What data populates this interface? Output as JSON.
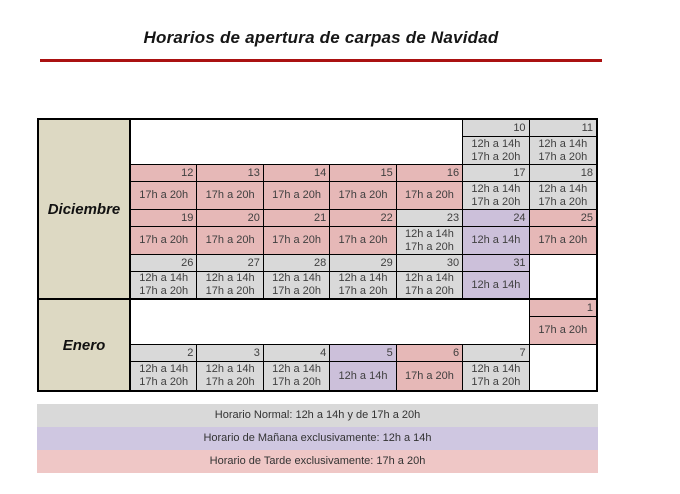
{
  "title": "Horarios de apertura de carpas de Navidad",
  "colors": {
    "normal": "#D9D9D9",
    "morning": "#CCC0DA",
    "evening": "#E6B8B7",
    "month_bg": "#DDD9C3",
    "rule": "#AA1111"
  },
  "hours": {
    "normal": [
      "12h a 14h",
      "17h a 20h"
    ],
    "morning": [
      "12h a 14h"
    ],
    "evening": [
      "17h a 20h"
    ]
  },
  "months": [
    {
      "label": "Diciembre",
      "weeks": [
        {
          "cells": [
            {
              "type": "empty",
              "span": 5
            },
            {
              "day": "10",
              "mode": "normal"
            },
            {
              "day": "11",
              "mode": "normal"
            }
          ]
        },
        {
          "cells": [
            {
              "day": "12",
              "mode": "evening"
            },
            {
              "day": "13",
              "mode": "evening"
            },
            {
              "day": "14",
              "mode": "evening"
            },
            {
              "day": "15",
              "mode": "evening"
            },
            {
              "day": "16",
              "mode": "evening"
            },
            {
              "day": "17",
              "mode": "normal"
            },
            {
              "day": "18",
              "mode": "normal"
            }
          ]
        },
        {
          "cells": [
            {
              "day": "19",
              "mode": "evening"
            },
            {
              "day": "20",
              "mode": "evening"
            },
            {
              "day": "21",
              "mode": "evening"
            },
            {
              "day": "22",
              "mode": "evening"
            },
            {
              "day": "23",
              "mode": "normal"
            },
            {
              "day": "24",
              "mode": "morning"
            },
            {
              "day": "25",
              "mode": "evening"
            }
          ]
        },
        {
          "cells": [
            {
              "day": "26",
              "mode": "normal"
            },
            {
              "day": "27",
              "mode": "normal"
            },
            {
              "day": "28",
              "mode": "normal"
            },
            {
              "day": "29",
              "mode": "normal"
            },
            {
              "day": "30",
              "mode": "normal"
            },
            {
              "day": "31",
              "mode": "morning"
            },
            {
              "type": "empty",
              "span": 1
            }
          ]
        }
      ]
    },
    {
      "label": "Enero",
      "weeks": [
        {
          "cells": [
            {
              "type": "empty",
              "span": 6
            },
            {
              "day": "1",
              "mode": "evening"
            }
          ]
        },
        {
          "cells": [
            {
              "day": "2",
              "mode": "normal"
            },
            {
              "day": "3",
              "mode": "normal"
            },
            {
              "day": "4",
              "mode": "normal"
            },
            {
              "day": "5",
              "mode": "morning"
            },
            {
              "day": "6",
              "mode": "evening"
            },
            {
              "day": "7",
              "mode": "normal"
            },
            {
              "type": "empty",
              "span": 1
            }
          ]
        }
      ]
    }
  ],
  "legend": [
    {
      "label": "Horario Normal: 12h a 14h y de 17h a 20h",
      "color": "#D9D9D9"
    },
    {
      "label": "Horario de Mañana exclusivamente: 12h a 14h",
      "color": "#CFC7E1"
    },
    {
      "label": "Horario de Tarde exclusivamente: 17h a 20h",
      "color": "#EFC7C6"
    }
  ]
}
